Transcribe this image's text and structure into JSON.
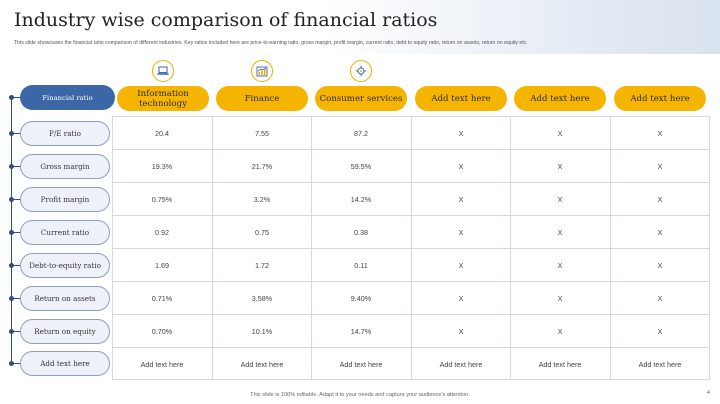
{
  "slide": {
    "title": "Industry wise comparison of financial ratios",
    "subtitle": "This slide showcases the financial ratio comparison of different industries. Key ratios included here are price-to-earning ratio, gross margin, profit margin, current ratio, debt to equity ratio, return on assets, return on equity etc.",
    "footer": "This slide is 100% editable. Adapt it to your needs and capture your audience's attention.",
    "page_number": "4"
  },
  "table": {
    "corner_label": "Financial ratio",
    "columns": [
      {
        "label": "Information technology",
        "icon": "laptop-icon"
      },
      {
        "label": "Finance",
        "icon": "chart-growth-icon"
      },
      {
        "label": "Consumer services",
        "icon": "service-gear-icon"
      },
      {
        "label": "Add text here"
      },
      {
        "label": "Add text here"
      },
      {
        "label": "Add text here"
      }
    ],
    "rows": [
      {
        "label": "P/E ratio",
        "values": [
          "20.4",
          "7.55",
          "87.2",
          "X",
          "X",
          "X"
        ]
      },
      {
        "label": "Gross margin",
        "values": [
          "19.3%",
          "21.7%",
          "59.5%",
          "X",
          "X",
          "X"
        ]
      },
      {
        "label": "Profit margin",
        "values": [
          "0.75%",
          "3.2%",
          "14.2%",
          "X",
          "X",
          "X"
        ]
      },
      {
        "label": "Current ratio",
        "values": [
          "0.92",
          "0.75",
          "0.38",
          "X",
          "X",
          "X"
        ]
      },
      {
        "label": "Debt-to-equity ratio",
        "values": [
          "1.69",
          "1.72",
          "0.11",
          "X",
          "X",
          "X"
        ]
      },
      {
        "label": "Return on assets",
        "values": [
          "0.71%",
          "3.58%",
          "9.40%",
          "X",
          "X",
          "X"
        ]
      },
      {
        "label": "Return on equity",
        "values": [
          "0.70%",
          "10.1%",
          "14.7%",
          "X",
          "X",
          "X"
        ]
      },
      {
        "label": "Add text here",
        "values": [
          "Add text here",
          "Add text here",
          "Add text here",
          "Add text here",
          "Add text here",
          "Add text here"
        ]
      }
    ]
  },
  "colors": {
    "accent": "#f5b400",
    "primary": "#3b67a7",
    "row_pill": "#eef2f8"
  }
}
